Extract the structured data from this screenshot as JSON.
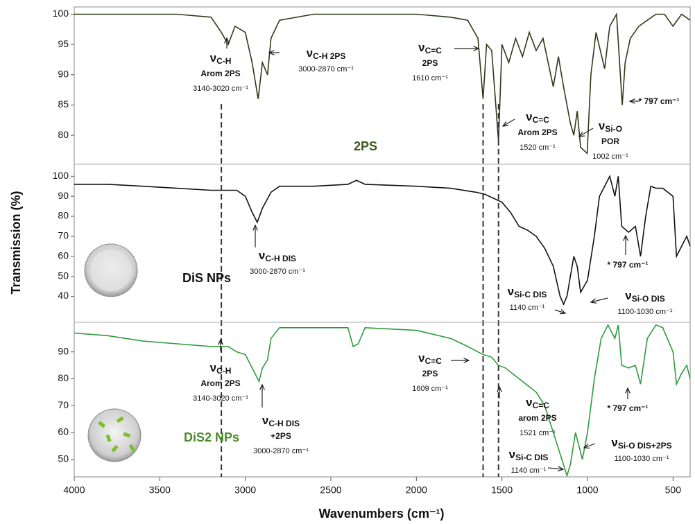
{
  "chart_data": [
    {
      "type": "line",
      "name": "2PS",
      "color": "#2b3a16",
      "label_color": "#3a5a1a",
      "xlim": [
        4000,
        400
      ],
      "ylim": [
        75.2,
        101.2
      ],
      "yticks": [
        80,
        85,
        90,
        95,
        100
      ],
      "vlines": [
        3140,
        1610,
        1520
      ],
      "x": [
        4000,
        3700,
        3400,
        3200,
        3140,
        3100,
        3060,
        3000,
        2960,
        2925,
        2900,
        2870,
        2850,
        2800,
        2600,
        2300,
        2000,
        1800,
        1700,
        1640,
        1610,
        1590,
        1560,
        1520,
        1500,
        1460,
        1420,
        1380,
        1340,
        1300,
        1260,
        1200,
        1170,
        1140,
        1100,
        1080,
        1060,
        1040,
        1002,
        980,
        950,
        900,
        870,
        830,
        797,
        780,
        750,
        700,
        650,
        600,
        550,
        500,
        450,
        400
      ],
      "values": [
        100,
        100,
        100,
        99.5,
        97,
        95,
        98,
        97,
        92,
        86,
        92,
        90,
        96,
        99,
        100,
        100,
        100,
        99.5,
        99,
        96,
        86,
        95,
        94,
        79,
        95,
        92,
        96,
        93,
        97,
        94,
        96,
        88,
        93,
        88,
        82,
        80,
        84,
        78,
        77,
        90,
        97,
        91,
        98,
        100,
        85,
        92,
        96,
        98,
        99,
        100,
        100,
        98,
        100,
        99
      ],
      "annotations": [
        {
          "symbol": "ν",
          "sub": "C-H",
          "lines": [
            "Arom  2PS",
            "3140-3020 cm⁻¹"
          ]
        },
        {
          "symbol": "ν",
          "sub": "C-H 2PS",
          "lines": [
            "3000-2870 cm⁻¹"
          ]
        },
        {
          "symbol": "ν",
          "sub": "C=C",
          "lines": [
            "2PS",
            "1610 cm⁻¹"
          ]
        },
        {
          "symbol": "ν",
          "sub": "C=C",
          "lines": [
            "Arom 2PS",
            "1520 cm⁻¹"
          ]
        },
        {
          "symbol": "ν",
          "sub": "Si-O",
          "lines": [
            "POR",
            "1002 cm⁻¹"
          ]
        },
        {
          "text": "* 797 cm⁻¹"
        }
      ]
    },
    {
      "type": "line",
      "name": "DiS NPs",
      "color": "#111111",
      "label_color": "#111111",
      "xlim": [
        4000,
        400
      ],
      "ylim": [
        27,
        106
      ],
      "yticks": [
        40,
        50,
        60,
        70,
        80,
        90,
        100
      ],
      "ylabel": "Transmission (%)",
      "x": [
        4000,
        3800,
        3600,
        3400,
        3200,
        3050,
        3000,
        2960,
        2930,
        2900,
        2850,
        2800,
        2600,
        2400,
        2350,
        2300,
        2000,
        1800,
        1650,
        1600,
        1500,
        1450,
        1400,
        1350,
        1300,
        1250,
        1200,
        1160,
        1140,
        1120,
        1080,
        1060,
        1040,
        1000,
        960,
        930,
        900,
        870,
        840,
        820,
        800,
        760,
        720,
        690,
        660,
        630,
        600,
        560,
        500,
        480,
        450,
        420,
        400
      ],
      "values": [
        96,
        96,
        95,
        94,
        93,
        93,
        90,
        82,
        77,
        84,
        92,
        95,
        95,
        96,
        98,
        96,
        95,
        94,
        92,
        91,
        87,
        82,
        75,
        73,
        70,
        64,
        55,
        40,
        36,
        40,
        60,
        55,
        42,
        48,
        70,
        90,
        95,
        100,
        90,
        100,
        75,
        72,
        75,
        60,
        80,
        95,
        94,
        94,
        90,
        60,
        65,
        70,
        65
      ],
      "annotations": [
        {
          "symbol": "ν",
          "sub": "C-H DIS",
          "lines": [
            "3000-2870 cm⁻¹"
          ]
        },
        {
          "text": "* 797 cm⁻¹"
        },
        {
          "symbol": "ν",
          "sub": "Si-C DIS",
          "lines": [
            "1140 cm⁻¹"
          ]
        },
        {
          "symbol": "ν",
          "sub": "Si-O DIS",
          "lines": [
            "1100-1030 cm⁻¹"
          ]
        }
      ]
    },
    {
      "type": "line",
      "name": "DiS2 NPs",
      "color": "#2e9a3e",
      "label_color": "#4d8a2a",
      "xlim": [
        4000,
        400
      ],
      "ylim": [
        43.5,
        101
      ],
      "yticks": [
        50,
        60,
        70,
        80,
        90
      ],
      "xticks": [
        4000,
        3500,
        3000,
        2500,
        2000,
        1500,
        1000,
        500
      ],
      "xlabel": "Wavenumbers (cm⁻¹)",
      "x": [
        4000,
        3800,
        3600,
        3400,
        3200,
        3100,
        3050,
        3000,
        2960,
        2920,
        2900,
        2870,
        2850,
        2800,
        2600,
        2400,
        2370,
        2340,
        2300,
        2000,
        1800,
        1700,
        1610,
        1560,
        1520,
        1480,
        1400,
        1300,
        1250,
        1200,
        1150,
        1120,
        1100,
        1070,
        1050,
        1030,
        1000,
        960,
        920,
        880,
        840,
        820,
        800,
        760,
        720,
        690,
        650,
        600,
        560,
        500,
        480,
        450,
        420,
        400
      ],
      "values": [
        97,
        96,
        94,
        93,
        92,
        92,
        90,
        89,
        84,
        79,
        84,
        87,
        95,
        99,
        99,
        99,
        92,
        93,
        99,
        98,
        95,
        92,
        89,
        88,
        85,
        84,
        80,
        75,
        70,
        60,
        50,
        44,
        48,
        60,
        55,
        50,
        60,
        80,
        95,
        100,
        95,
        100,
        85,
        84,
        85,
        78,
        95,
        100,
        99,
        90,
        78,
        82,
        85,
        80
      ],
      "annotations": [
        {
          "symbol": "ν",
          "sub": "C-H",
          "lines": [
            "Arom  2PS",
            "3140-3020 cm⁻¹"
          ]
        },
        {
          "symbol": "ν",
          "sub": "C-H DIS",
          "lines": [
            "+2PS",
            "3000-2870 cm⁻¹"
          ]
        },
        {
          "symbol": "ν",
          "sub": "C=C",
          "lines": [
            "2PS",
            "1609 cm⁻¹"
          ]
        },
        {
          "symbol": "ν",
          "sub": "C=C",
          "lines": [
            "arom 2PS",
            "1521 cm⁻¹"
          ]
        },
        {
          "text": "* 797 cm⁻¹"
        },
        {
          "symbol": "ν",
          "sub": "Si-C DIS",
          "lines": [
            "1140 cm⁻¹"
          ]
        },
        {
          "symbol": "ν",
          "sub": "Si-O DIS+2PS",
          "lines": [
            "1100-1030 cm⁻¹"
          ]
        }
      ]
    }
  ]
}
